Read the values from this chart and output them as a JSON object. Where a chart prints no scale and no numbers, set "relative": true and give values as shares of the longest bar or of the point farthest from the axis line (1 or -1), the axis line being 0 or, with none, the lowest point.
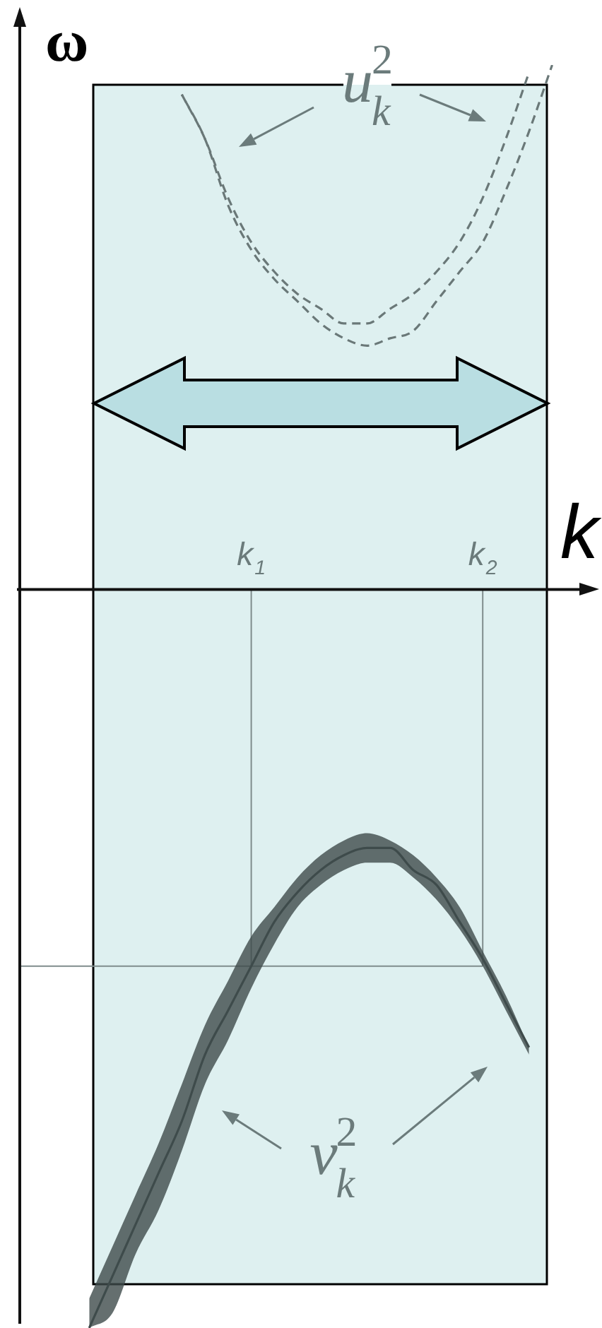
{
  "chart_data": {
    "type": "line",
    "xlabel": "k",
    "ylabel": "ω",
    "relative": true,
    "marker": "none",
    "categories": [
      null,
      null,
      null,
      null,
      null,
      null,
      null,
      null,
      null,
      null,
      "k$_{1}$",
      null,
      null,
      null,
      null,
      null,
      null,
      null,
      null,
      null,
      "k$_{2}$",
      null,
      null,
      null,
      null,
      null
    ],
    "series": [
      {
        "color": "#6a7878",
        "line_style": "dashed",
        "values": [
          null,
          null,
          null,
          null,
          null,
          null,
          null,
          0.67,
          0.61,
          0.53,
          0.47,
          0.43,
          0.4,
          0.38,
          0.36,
          0.36,
          0.38,
          0.4,
          0.43,
          0.47,
          0.53,
          0.61,
          0.7,
          null,
          null,
          null
        ]
      },
      {
        "color": "#6a7878",
        "line_style": "dashed",
        "values": [
          null,
          null,
          null,
          null,
          null,
          null,
          null,
          0.67,
          0.61,
          0.52,
          0.46,
          0.42,
          0.39,
          0.36,
          0.34,
          0.33,
          0.34,
          0.35,
          0.39,
          0.43,
          0.47,
          0.54,
          0.62,
          0.71,
          null,
          null
        ]
      },
      {
        "color": "#3f4b4b",
        "line_style": "solid",
        "values": [
          null,
          null,
          null,
          -1,
          -0.93,
          -0.86,
          -0.79,
          -0.72,
          -0.63,
          -0.57,
          -0.51,
          -0.45,
          -0.41,
          -0.38,
          -0.36,
          -0.35,
          -0.35,
          -0.38,
          -0.4,
          -0.45,
          -0.5,
          -0.56,
          -0.62,
          null,
          null,
          null
        ],
        "upper": [
          null,
          null,
          null,
          -0.96,
          -0.89,
          -0.82,
          -0.75,
          -0.67,
          -0.59,
          -0.53,
          -0.47,
          -0.43,
          -0.39,
          -0.36,
          -0.34,
          -0.33,
          -0.34,
          -0.36,
          -0.39,
          -0.43,
          -0.49,
          -0.55,
          -0.62,
          null,
          null,
          null
        ],
        "lower": [
          null,
          null,
          null,
          -1,
          -0.98,
          -0.9,
          -0.84,
          -0.76,
          -0.67,
          -0.61,
          -0.54,
          -0.48,
          -0.43,
          -0.4,
          -0.38,
          -0.37,
          -0.37,
          -0.39,
          -0.42,
          -0.46,
          -0.51,
          -0.57,
          -0.63,
          null,
          null,
          null
        ]
      }
    ],
    "ref_lines": [
      {
        "axis": "x",
        "value": "k$_{1}$",
        "color": "#7f8c8c"
      },
      {
        "axis": "x",
        "value": "k$_{2}$",
        "color": "#7f8c8c"
      },
      {
        "axis": "y",
        "value": -0.51,
        "color": "#7f8c8c"
      }
    ],
    "annotations": [
      "u$_{k}$$^{2}$",
      "v$_{k}$$^{2}$"
    ]
  }
}
